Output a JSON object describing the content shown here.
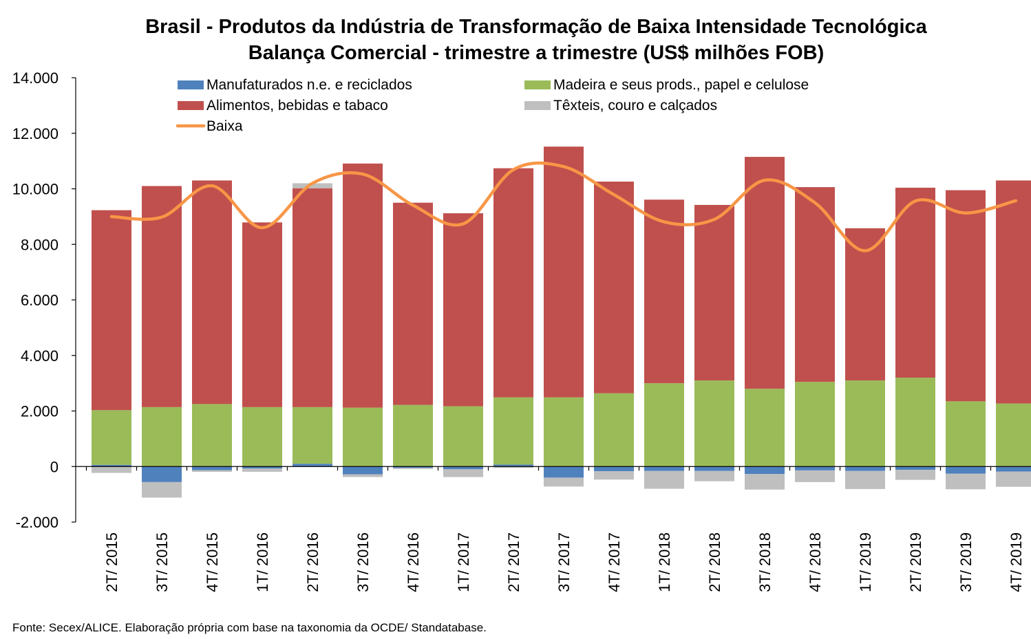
{
  "chart_data": {
    "type": "bar",
    "stacked": true,
    "title": "Brasil - Produtos da Indústria de Transformação de Baixa Intensidade Tecnológica",
    "subtitle": "Balança Comercial - trimestre a trimestre (US$ milhões FOB)",
    "source": "Fonte: Secex/ALICE. Elaboração própria com base na taxonomia da OCDE/ Standatabase.",
    "ylim": [
      -2000,
      14000
    ],
    "yticks": [
      -2000,
      0,
      2000,
      4000,
      6000,
      8000,
      10000,
      12000,
      14000
    ],
    "ytick_labels": [
      "-2.000",
      "0",
      "2.000",
      "4.000",
      "6.000",
      "8.000",
      "10.000",
      "12.000",
      "14.000"
    ],
    "categories": [
      "2T/ 2015",
      "3T/ 2015",
      "4T/ 2015",
      "1T/ 2016",
      "2T/ 2016",
      "3T/ 2016",
      "4T/ 2016",
      "1T/ 2017",
      "2T/ 2017",
      "3T/ 2017",
      "4T/ 2017",
      "1T/ 2018",
      "2T/ 2018",
      "3T/ 2018",
      "4T/ 2018",
      "1T/ 2019",
      "2T/ 2019",
      "3T/ 2019",
      "4T/ 2019"
    ],
    "legend_position": "top",
    "series": [
      {
        "name": "Manufaturados n.e. e reciclados",
        "kind": "bar",
        "color": "#4f81bd",
        "values": [
          60,
          -560,
          -130,
          -70,
          100,
          -280,
          -50,
          -100,
          70,
          -400,
          -170,
          -160,
          -160,
          -270,
          -140,
          -160,
          -120,
          -260,
          -180
        ]
      },
      {
        "name": "Madeira e seus prods., papel e celulose",
        "kind": "bar",
        "color": "#9bbb59",
        "values": [
          1970,
          2140,
          2250,
          2140,
          2040,
          2120,
          2220,
          2170,
          2420,
          2490,
          2640,
          3000,
          3100,
          2800,
          3050,
          3100,
          3200,
          2350,
          2270
        ]
      },
      {
        "name": "Alimentos, bebidas e tabaco",
        "kind": "bar",
        "color": "#c0504d",
        "values": [
          7200,
          7960,
          8050,
          6650,
          7880,
          8790,
          7280,
          6950,
          8250,
          9030,
          7620,
          6610,
          6320,
          8350,
          7010,
          5480,
          6840,
          7600,
          8030
        ]
      },
      {
        "name": "Têxteis, couro e calçados",
        "kind": "bar",
        "color": "#bfbfbf",
        "values": [
          -230,
          -560,
          -60,
          -120,
          180,
          -100,
          -40,
          -280,
          -50,
          -320,
          -300,
          -640,
          -370,
          -560,
          -420,
          -650,
          -360,
          -560,
          -550
        ]
      },
      {
        "name": "Baixa",
        "kind": "line",
        "color": "#f79646",
        "values": [
          9000,
          8980,
          10110,
          8600,
          10200,
          10530,
          9410,
          8740,
          10690,
          10800,
          9790,
          8810,
          8900,
          10310,
          9500,
          7770,
          9560,
          9130,
          9570
        ]
      }
    ]
  }
}
